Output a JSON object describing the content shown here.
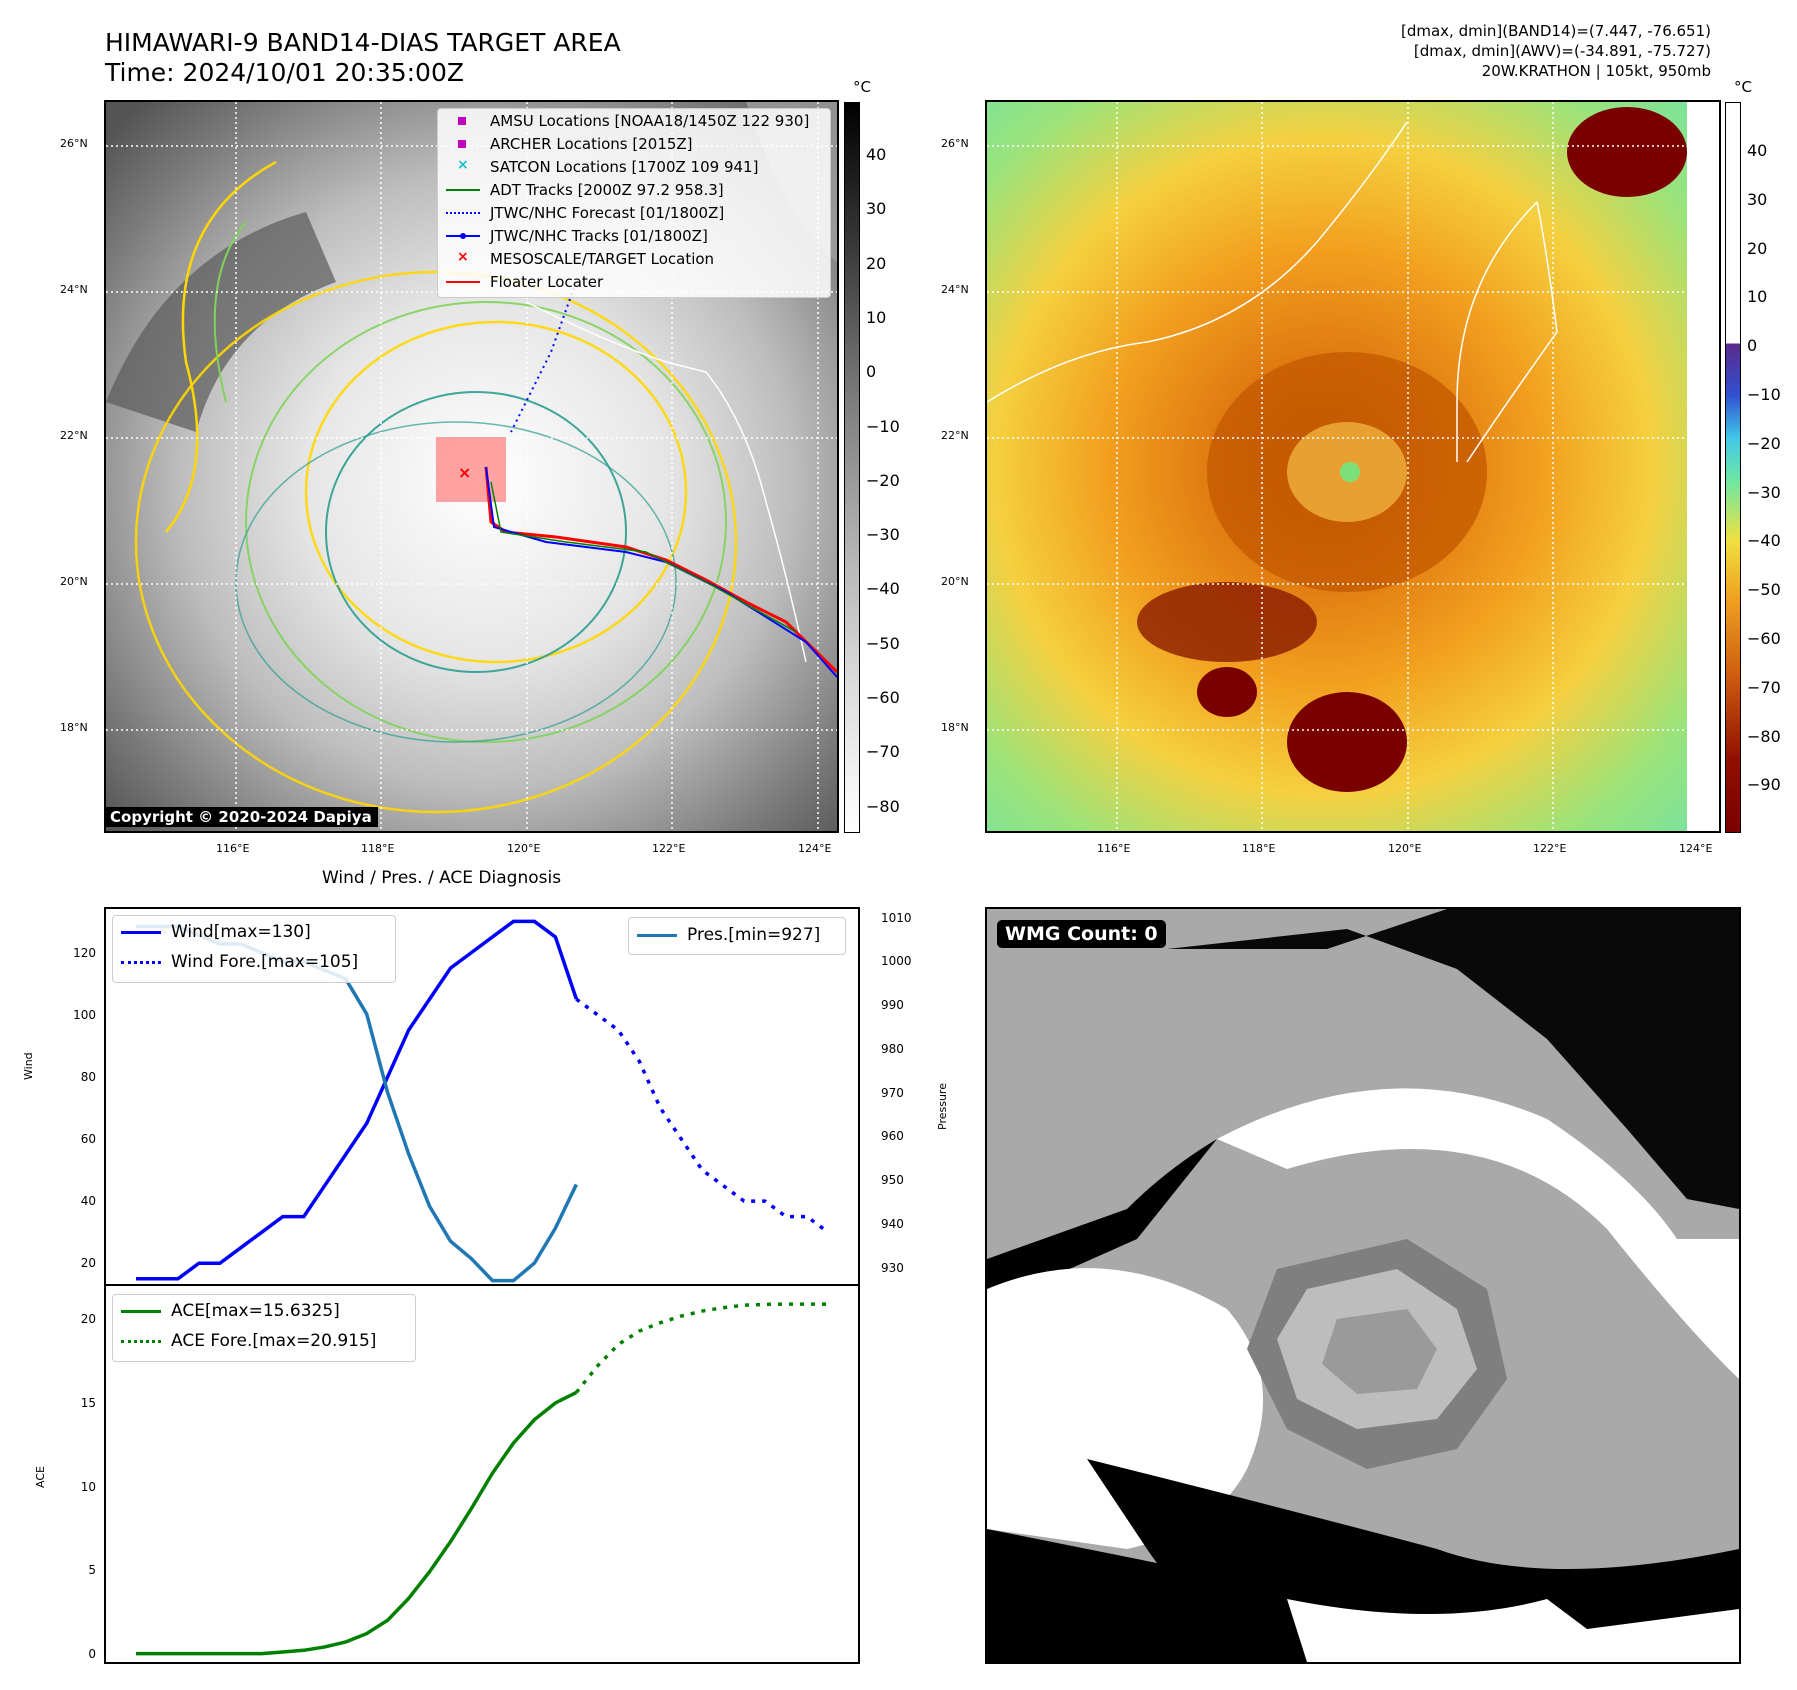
{
  "header": {
    "title_line1": "HIMAWARI-9 BAND14-DIAS TARGET AREA",
    "title_line2": "Time: 2024/10/01 20:35:00Z",
    "info_line1": "[dmax, dmin](BAND14)=(7.447, -76.651)",
    "info_line2": "[dmax, dmin](AWV)=(-34.891, -75.727)",
    "info_line3": "20W.KRATHON | 105kt, 950mb"
  },
  "map_axes": {
    "lat_labels": [
      "26°N",
      "24°N",
      "22°N",
      "20°N",
      "18°N"
    ],
    "lon_labels": [
      "116°E",
      "118°E",
      "120°E",
      "122°E",
      "124°E"
    ]
  },
  "ir_panel": {
    "copyright": "Copyright © 2020-2024 Dapiya",
    "colorbar_unit": "°C",
    "colorbar_ticks": [
      "40",
      "30",
      "20",
      "10",
      "0",
      "−10",
      "−20",
      "−30",
      "−40",
      "−50",
      "−60",
      "−70",
      "−80"
    ],
    "legend": [
      {
        "label": "AMSU Locations [NOAA18/1450Z 122 930]",
        "color": "#c000c0",
        "kind": "square"
      },
      {
        "label": "ARCHER Locations [2015Z]",
        "color": "#c000c0",
        "kind": "square"
      },
      {
        "label": "SATCON Locations [1700Z 109 941]",
        "color": "#17becf",
        "kind": "x"
      },
      {
        "label": "ADT Tracks [2000Z 97.2 958.3]",
        "color": "#008000",
        "kind": "line"
      },
      {
        "label": "JTWC/NHC Forecast [01/1800Z]",
        "color": "#0000ff",
        "kind": "dotted"
      },
      {
        "label": "JTWC/NHC Tracks [01/1800Z]",
        "color": "#0000ff",
        "kind": "dotline"
      },
      {
        "label": "MESOSCALE/TARGET Location",
        "color": "#ff0000",
        "kind": "x"
      },
      {
        "label": "Floater Locater",
        "color": "#ff0000",
        "kind": "line"
      }
    ]
  },
  "awv_panel": {
    "colorbar_unit": "°C",
    "colorbar_ticks": [
      "40",
      "30",
      "20",
      "10",
      "0",
      "−10",
      "−20",
      "−30",
      "−40",
      "−50",
      "−60",
      "−70",
      "−80",
      "−90"
    ]
  },
  "diagnosis": {
    "title": "Wind / Pres. / ACE Diagnosis",
    "wind_ylabel": "Wind",
    "pres_ylabel": "Pressure",
    "ace_ylabel": "ACE",
    "wind_ticks": [
      "120",
      "100",
      "80",
      "60",
      "40",
      "20"
    ],
    "pres_ticks": [
      "1010",
      "1000",
      "990",
      "980",
      "970",
      "960",
      "950",
      "940",
      "930"
    ],
    "ace_ticks": [
      "20",
      "15",
      "10",
      "5",
      "0"
    ],
    "legend_wind": "Wind[max=130]",
    "legend_wind_fore": "Wind Fore.[max=105]",
    "legend_pres": "Pres.[min=927]",
    "legend_ace": "ACE[max=15.6325]",
    "legend_ace_fore": "ACE Fore.[max=20.915]"
  },
  "wmg_panel": {
    "label": "WMG Count: 0"
  },
  "chart_data": [
    {
      "type": "line",
      "title": "Wind / Pres. / ACE Diagnosis",
      "ylabel": "Wind",
      "ylim": [
        13,
        134
      ],
      "series": [
        {
          "name": "Wind[max=130]",
          "color": "#0000ff",
          "style": "solid",
          "x": [
            0,
            1,
            2,
            3,
            4,
            5,
            6,
            7,
            8,
            9,
            10,
            11,
            12,
            13,
            14,
            15,
            16,
            17
          ],
          "values": [
            15,
            15,
            15,
            20,
            20,
            25,
            30,
            35,
            35,
            45,
            55,
            65,
            80,
            95,
            105,
            115,
            120,
            125
          ]
        },
        {
          "name": "Wind[max=130] (cont.)",
          "color": "#0000ff",
          "style": "solid",
          "x": [
            17,
            18,
            19,
            20,
            21
          ],
          "values": [
            125,
            130,
            130,
            125,
            105
          ]
        },
        {
          "name": "Wind Fore.[max=105]",
          "color": "#0000ff",
          "style": "dotted",
          "x": [
            21,
            22,
            23,
            24,
            25,
            26,
            27,
            28,
            29,
            30,
            31,
            32,
            33
          ],
          "values": [
            105,
            100,
            95,
            85,
            70,
            60,
            50,
            45,
            40,
            40,
            35,
            35,
            30
          ]
        }
      ]
    },
    {
      "type": "line",
      "ylabel": "Pressure",
      "ylim": [
        926,
        1012
      ],
      "series": [
        {
          "name": "Pres.[min=927]",
          "color": "#1f77b4",
          "style": "solid",
          "x": [
            0,
            1,
            2,
            3,
            4,
            5,
            6,
            7,
            8,
            9,
            10,
            11,
            12,
            13,
            14,
            15,
            16,
            17,
            18,
            19,
            20,
            21
          ],
          "values": [
            1008,
            1008,
            1008,
            1006,
            1004,
            1004,
            1002,
            1000,
            1000,
            998,
            996,
            988,
            970,
            956,
            944,
            936,
            932,
            927,
            927,
            931,
            939,
            949
          ]
        }
      ]
    },
    {
      "type": "line",
      "ylabel": "ACE",
      "ylim": [
        -0.5,
        22
      ],
      "series": [
        {
          "name": "ACE[max=15.6325]",
          "color": "#008000",
          "style": "solid",
          "x": [
            0,
            1,
            2,
            3,
            4,
            5,
            6,
            7,
            8,
            9,
            10,
            11,
            12,
            13,
            14,
            15,
            16,
            17,
            18,
            19,
            20,
            21
          ],
          "values": [
            0,
            0,
            0,
            0,
            0,
            0,
            0,
            0.1,
            0.2,
            0.4,
            0.7,
            1.2,
            2.0,
            3.3,
            4.9,
            6.7,
            8.7,
            10.8,
            12.6,
            14.0,
            15.0,
            15.6325
          ]
        },
        {
          "name": "ACE Fore.[max=20.915]",
          "color": "#008000",
          "style": "dotted",
          "x": [
            21,
            22,
            23,
            24,
            25,
            26,
            27,
            28,
            29,
            30,
            31,
            32,
            33
          ],
          "values": [
            15.6325,
            17.2,
            18.5,
            19.3,
            19.8,
            20.2,
            20.5,
            20.7,
            20.85,
            20.9,
            20.915,
            20.915,
            20.915
          ]
        }
      ]
    }
  ]
}
